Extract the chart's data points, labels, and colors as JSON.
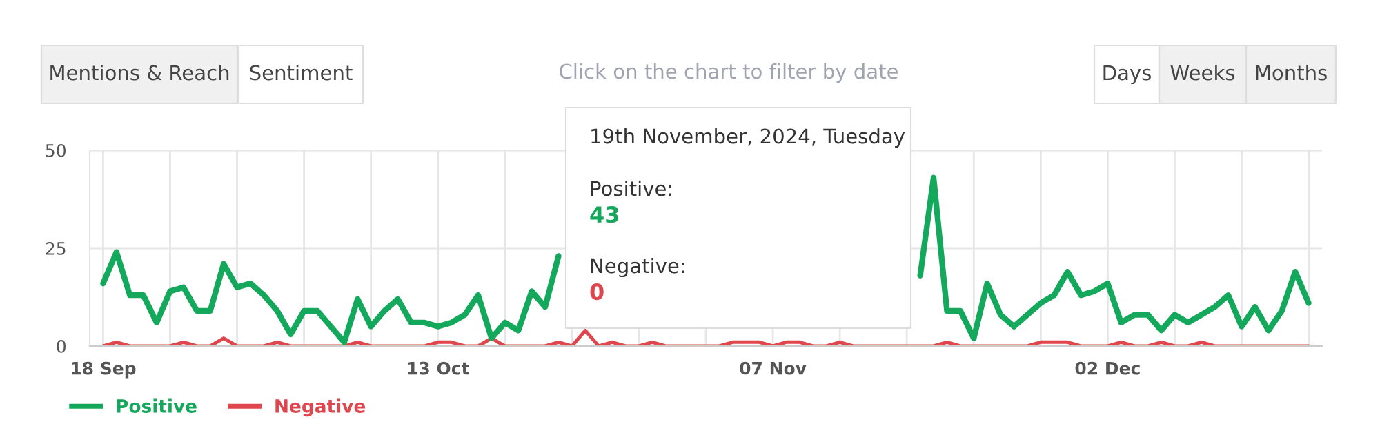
{
  "chart_data": {
    "type": "line",
    "x": [
      "2024-09-18",
      "2024-09-19",
      "2024-09-20",
      "2024-09-21",
      "2024-09-22",
      "2024-09-23",
      "2024-09-24",
      "2024-09-25",
      "2024-09-26",
      "2024-09-27",
      "2024-09-28",
      "2024-09-29",
      "2024-09-30",
      "2024-10-01",
      "2024-10-02",
      "2024-10-03",
      "2024-10-04",
      "2024-10-05",
      "2024-10-06",
      "2024-10-07",
      "2024-10-08",
      "2024-10-09",
      "2024-10-10",
      "2024-10-11",
      "2024-10-12",
      "2024-10-13",
      "2024-10-14",
      "2024-10-15",
      "2024-10-16",
      "2024-10-17",
      "2024-10-18",
      "2024-10-19",
      "2024-10-20",
      "2024-10-21",
      "2024-10-22",
      "2024-10-23",
      "2024-10-24",
      "2024-10-25",
      "2024-10-26",
      "2024-10-27",
      "2024-10-28",
      "2024-10-29",
      "2024-10-30",
      "2024-10-31",
      "2024-11-01",
      "2024-11-02",
      "2024-11-03",
      "2024-11-04",
      "2024-11-05",
      "2024-11-06",
      "2024-11-07",
      "2024-11-08",
      "2024-11-09",
      "2024-11-10",
      "2024-11-11",
      "2024-11-12",
      "2024-11-13",
      "2024-11-14",
      "2024-11-15",
      "2024-11-16",
      "2024-11-17",
      "2024-11-18",
      "2024-11-19",
      "2024-11-20",
      "2024-11-21",
      "2024-11-22",
      "2024-11-23",
      "2024-11-24",
      "2024-11-25",
      "2024-11-26",
      "2024-11-27",
      "2024-11-28",
      "2024-11-29",
      "2024-11-30",
      "2024-12-01",
      "2024-12-02",
      "2024-12-03",
      "2024-12-04",
      "2024-12-05",
      "2024-12-06",
      "2024-12-07",
      "2024-12-08",
      "2024-12-09",
      "2024-12-10",
      "2024-12-11",
      "2024-12-12",
      "2024-12-13",
      "2024-12-14",
      "2024-12-15",
      "2024-12-16",
      "2024-12-17"
    ],
    "series": [
      {
        "name": "Positive",
        "color": "#13a85c",
        "values": [
          16,
          24,
          13,
          13,
          6,
          14,
          15,
          9,
          9,
          21,
          15,
          16,
          13,
          9,
          3,
          9,
          9,
          5,
          1,
          12,
          5,
          9,
          12,
          6,
          6,
          5,
          6,
          8,
          13,
          2,
          6,
          4,
          14,
          10,
          23,
          null,
          null,
          null,
          null,
          null,
          null,
          null,
          null,
          null,
          null,
          null,
          null,
          null,
          null,
          null,
          null,
          null,
          null,
          null,
          null,
          null,
          null,
          null,
          null,
          null,
          null,
          18,
          43,
          9,
          9,
          2,
          16,
          8,
          5,
          8,
          11,
          13,
          19,
          13,
          14,
          16,
          6,
          8,
          8,
          4,
          8,
          6,
          8,
          10,
          13,
          5,
          10,
          4,
          9,
          19,
          11
        ]
      },
      {
        "name": "Negative",
        "color": "#e0464e",
        "values": [
          0,
          1,
          0,
          0,
          0,
          0,
          1,
          0,
          0,
          2,
          0,
          0,
          0,
          1,
          0,
          0,
          0,
          0,
          0,
          1,
          0,
          0,
          0,
          0,
          0,
          1,
          1,
          0,
          0,
          2,
          0,
          0,
          0,
          0,
          1,
          0,
          4,
          0,
          1,
          0,
          0,
          1,
          0,
          0,
          0,
          0,
          0,
          1,
          1,
          1,
          0,
          1,
          1,
          0,
          0,
          1,
          0,
          0,
          0,
          0,
          0,
          0,
          0,
          1,
          0,
          0,
          0,
          0,
          0,
          0,
          1,
          1,
          1,
          0,
          0,
          0,
          1,
          0,
          0,
          1,
          0,
          0,
          1,
          0,
          0,
          0,
          0,
          0,
          0,
          0,
          0
        ]
      }
    ],
    "xlim": [
      "2024-09-17",
      "2024-12-18"
    ],
    "xticks": [
      {
        "value": "2024-09-18",
        "label": "18 Sep"
      },
      {
        "value": "2024-09-23",
        "label": null
      },
      {
        "value": "2024-09-28",
        "label": null
      },
      {
        "value": "2024-10-03",
        "label": null
      },
      {
        "value": "2024-10-08",
        "label": null
      },
      {
        "value": "2024-10-13",
        "label": "13 Oct"
      },
      {
        "value": "2024-10-18",
        "label": null
      },
      {
        "value": "2024-10-23",
        "label": null
      },
      {
        "value": "2024-10-28",
        "label": null
      },
      {
        "value": "2024-11-02",
        "label": null
      },
      {
        "value": "2024-11-07",
        "label": "07 Nov"
      },
      {
        "value": "2024-11-12",
        "label": null
      },
      {
        "value": "2024-11-17",
        "label": null
      },
      {
        "value": "2024-11-22",
        "label": null
      },
      {
        "value": "2024-11-27",
        "label": null
      },
      {
        "value": "2024-12-02",
        "label": "02 Dec"
      },
      {
        "value": "2024-12-07",
        "label": null
      },
      {
        "value": "2024-12-12",
        "label": null
      },
      {
        "value": "2024-12-17",
        "label": null
      }
    ],
    "ylim": [
      0,
      50
    ],
    "yticks": [
      0,
      25,
      50
    ],
    "grid": true,
    "legend": "bottom left",
    "marker": "none",
    "line_style": "solid",
    "annotations": [
      "Mentions & Reach",
      "Sentiment",
      "Click on the chart to filter by date",
      "Days",
      "Weeks",
      "Months",
      "19th November, 2024, Tuesday",
      "Positive:",
      "43",
      "Negative:",
      "0"
    ]
  }
}
